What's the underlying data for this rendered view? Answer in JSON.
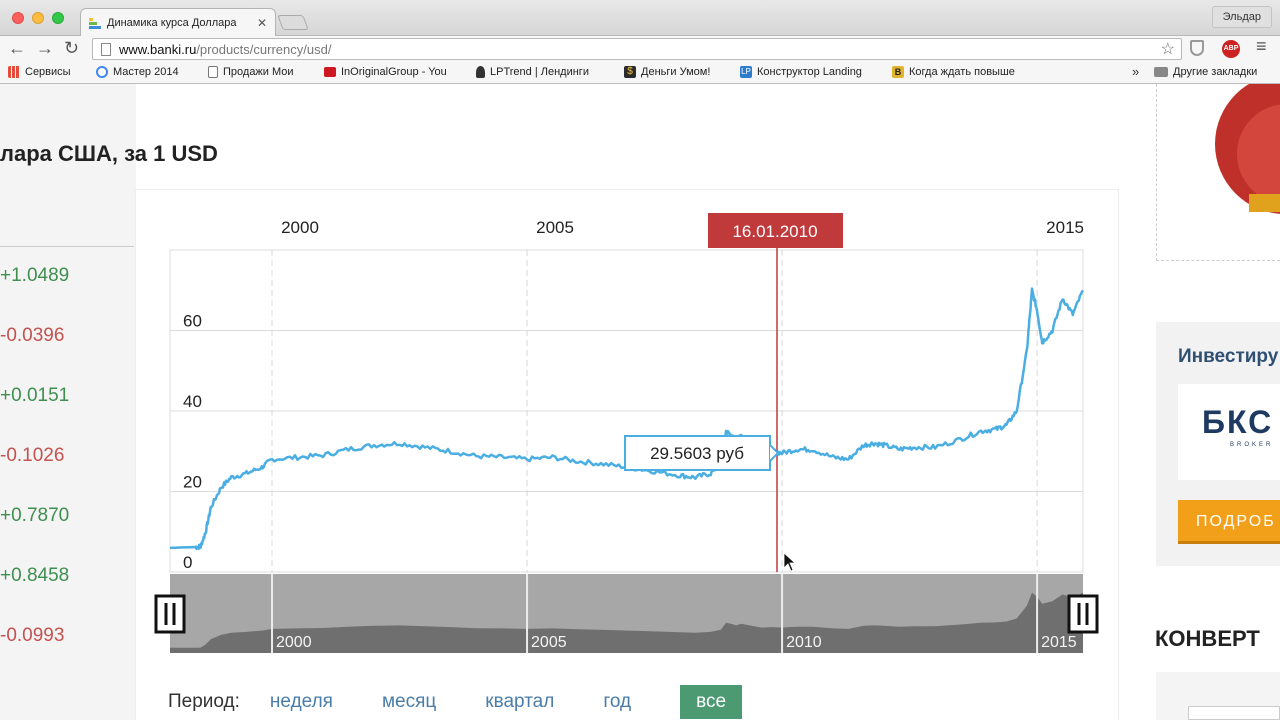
{
  "browser": {
    "tab_title": "Динамика курса Доллара",
    "profile_name": "Эльдар",
    "url_host": "www.banki.ru",
    "url_path": "/products/currency/usd/",
    "bookmarks": [
      {
        "label": "Сервисы",
        "icon": "apps-grid-icon",
        "color": "#e34c3c"
      },
      {
        "label": "Мастер 2014",
        "icon": "google-icon",
        "color": "#4285f4"
      },
      {
        "label": "Продажи Мои",
        "icon": "page-icon",
        "color": "#ffffff"
      },
      {
        "label": "InOriginalGroup - You",
        "icon": "youtube-icon",
        "color": "#cc181e"
      },
      {
        "label": "LPTrend | Лендинги",
        "icon": "lptrend-icon",
        "color": "#333333"
      },
      {
        "label": "Деньги Умом!",
        "icon": "dollar-icon",
        "color": "#2b2b2b"
      },
      {
        "label": "Конструктор Landing",
        "icon": "lp-icon",
        "color": "#2f7ccf"
      },
      {
        "label": "Когда ждать повыше",
        "icon": "b-icon",
        "color": "#e2b32c"
      }
    ],
    "bookmarks_more": "»",
    "other_bookmarks": "Другие закладки"
  },
  "page": {
    "title": "лара США, за 1 USD",
    "changes": [
      {
        "value": "+1.0489",
        "sign": "pos"
      },
      {
        "value": "-0.0396",
        "sign": "neg"
      },
      {
        "value": "+0.0151",
        "sign": "pos"
      },
      {
        "value": "-0.1026",
        "sign": "neg"
      },
      {
        "value": "+0.7870",
        "sign": "pos"
      },
      {
        "value": "+0.8458",
        "sign": "pos"
      },
      {
        "value": "-0.0993",
        "sign": "neg"
      }
    ],
    "period_label": "Период:",
    "periods": [
      "неделя",
      "месяц",
      "квартал",
      "год",
      "все"
    ],
    "active_period": "все"
  },
  "sidebar": {
    "invest_title": "Инвестиру",
    "logo_text": "БКС",
    "logo_sub": "BROKER",
    "button_label": "ПОДРОБ",
    "converter_title": "КОНВЕРТ"
  },
  "chart_data": {
    "type": "line",
    "x_ticks": [
      "2000",
      "2005",
      "2010",
      "2015"
    ],
    "y_ticks": [
      "0",
      "20",
      "40",
      "60"
    ],
    "ylim": [
      0,
      80
    ],
    "xlim": [
      1998.0,
      2015.9
    ],
    "cursor_date": "16.01.2010",
    "cursor_value_label": "29.5603 руб",
    "navigator_ticks": [
      "2000",
      "2005",
      "2010",
      "2015"
    ],
    "series": [
      {
        "color": "#4aaee2",
        "x": [
          1998.0,
          1998.5,
          1998.6,
          1998.7,
          1998.8,
          1999.0,
          1999.2,
          1999.5,
          1999.8,
          2000.0,
          2000.5,
          2001.0,
          2001.5,
          2002.0,
          2002.5,
          2003.0,
          2003.5,
          2004.0,
          2004.5,
          2005.0,
          2005.5,
          2006.0,
          2006.5,
          2007.0,
          2007.5,
          2008.0,
          2008.3,
          2008.6,
          2008.8,
          2008.9,
          2009.0,
          2009.1,
          2009.2,
          2009.4,
          2009.6,
          2009.8,
          2010.0,
          2010.3,
          2010.6,
          2011.0,
          2011.3,
          2011.6,
          2011.8,
          2012.0,
          2012.3,
          2012.6,
          2013.0,
          2013.5,
          2013.9,
          2014.2,
          2014.4,
          2014.6,
          2014.8,
          2014.9,
          2015.0,
          2015.1,
          2015.3,
          2015.5,
          2015.7,
          2015.9
        ],
        "values": [
          6.0,
          6.2,
          6.3,
          10.0,
          16.0,
          21.0,
          23.5,
          24.5,
          26.0,
          28.0,
          28.5,
          29.0,
          30.5,
          31.5,
          32.0,
          31.0,
          30.0,
          28.8,
          28.5,
          28.0,
          28.5,
          27.5,
          26.8,
          26.0,
          25.0,
          24.0,
          23.5,
          24.5,
          27.0,
          35.0,
          34.0,
          32.0,
          34.0,
          31.5,
          29.5,
          30.0,
          29.56,
          30.5,
          30.4,
          28.5,
          28.0,
          31.5,
          32.0,
          31.5,
          30.5,
          31.0,
          31.0,
          33.0,
          35.0,
          35.5,
          36.5,
          40.0,
          55.0,
          70.0,
          65.0,
          57.0,
          60.0,
          68.0,
          64.0,
          70.0
        ]
      }
    ]
  }
}
